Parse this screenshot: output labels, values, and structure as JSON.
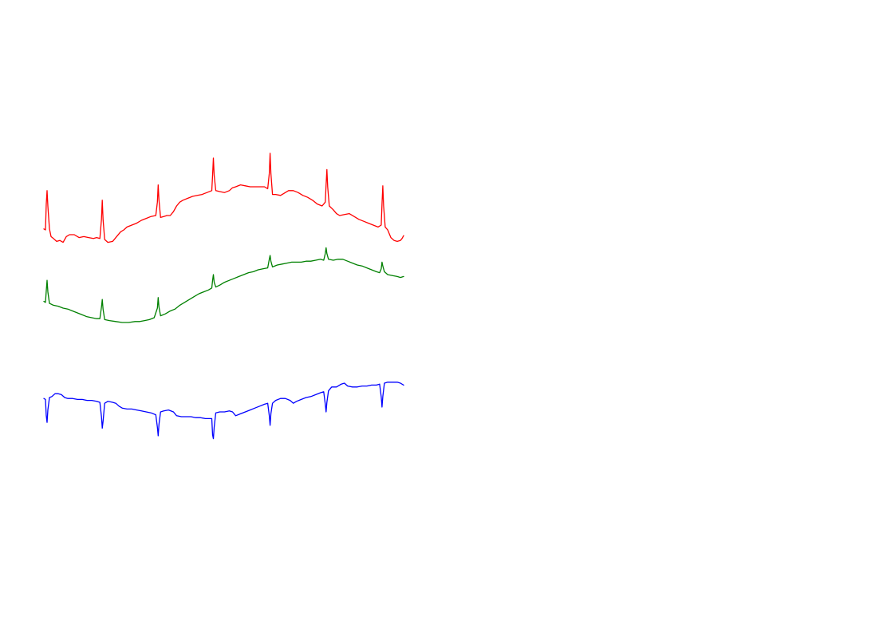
{
  "chart_data": {
    "type": "line",
    "title": "",
    "xlabel": "",
    "ylabel": "",
    "grid": false,
    "legend": "none",
    "x_range": [
      0,
      450
    ],
    "series": [
      {
        "color": "#ff0000",
        "values": [
          [
            0,
            1.6
          ],
          [
            2,
            1.5
          ],
          [
            3,
            4.2
          ],
          [
            4,
            5.6
          ],
          [
            5,
            4.0
          ],
          [
            7,
            1.6
          ],
          [
            9,
            0.8
          ],
          [
            12,
            0.6
          ],
          [
            16,
            0.3
          ],
          [
            20,
            0.4
          ],
          [
            24,
            0.2
          ],
          [
            28,
            0.8
          ],
          [
            32,
            1.0
          ],
          [
            38,
            1.0
          ],
          [
            44,
            0.7
          ],
          [
            50,
            0.8
          ],
          [
            56,
            0.7
          ],
          [
            62,
            0.6
          ],
          [
            66,
            0.7
          ],
          [
            70,
            0.6
          ],
          [
            72,
            2.6
          ],
          [
            73,
            4.6
          ],
          [
            74,
            2.6
          ],
          [
            76,
            0.5
          ],
          [
            80,
            0.2
          ],
          [
            86,
            0.3
          ],
          [
            92,
            0.9
          ],
          [
            96,
            1.3
          ],
          [
            100,
            1.5
          ],
          [
            104,
            1.8
          ],
          [
            110,
            2.0
          ],
          [
            116,
            2.2
          ],
          [
            122,
            2.5
          ],
          [
            128,
            2.7
          ],
          [
            134,
            2.9
          ],
          [
            140,
            3.0
          ],
          [
            142,
            4.4
          ],
          [
            143,
            6.2
          ],
          [
            144,
            4.6
          ],
          [
            146,
            2.8
          ],
          [
            150,
            2.9
          ],
          [
            154,
            3.0
          ],
          [
            158,
            3.0
          ],
          [
            162,
            3.4
          ],
          [
            166,
            4.0
          ],
          [
            170,
            4.4
          ],
          [
            174,
            4.6
          ],
          [
            180,
            4.8
          ],
          [
            186,
            5.0
          ],
          [
            192,
            5.1
          ],
          [
            198,
            5.2
          ],
          [
            204,
            5.4
          ],
          [
            210,
            5.6
          ],
          [
            211,
            7.2
          ],
          [
            212,
            9.0
          ],
          [
            213,
            7.2
          ],
          [
            215,
            5.6
          ],
          [
            220,
            5.5
          ],
          [
            226,
            5.4
          ],
          [
            232,
            5.6
          ],
          [
            236,
            5.9
          ],
          [
            240,
            6.0
          ],
          [
            246,
            6.2
          ],
          [
            252,
            6.1
          ],
          [
            258,
            6.0
          ],
          [
            264,
            6.0
          ],
          [
            270,
            6.0
          ],
          [
            276,
            6.0
          ],
          [
            280,
            5.8
          ],
          [
            282,
            7.4
          ],
          [
            283,
            9.5
          ],
          [
            284,
            7.4
          ],
          [
            286,
            5.2
          ],
          [
            290,
            5.2
          ],
          [
            296,
            5.1
          ],
          [
            300,
            5.3
          ],
          [
            306,
            5.6
          ],
          [
            312,
            5.6
          ],
          [
            318,
            5.4
          ],
          [
            324,
            5.1
          ],
          [
            330,
            4.9
          ],
          [
            336,
            4.6
          ],
          [
            342,
            4.2
          ],
          [
            348,
            4.0
          ],
          [
            352,
            4.4
          ],
          [
            353,
            6.2
          ],
          [
            354,
            7.8
          ],
          [
            355,
            6.0
          ],
          [
            357,
            4.0
          ],
          [
            362,
            3.6
          ],
          [
            366,
            3.2
          ],
          [
            370,
            3.0
          ],
          [
            376,
            3.1
          ],
          [
            382,
            3.2
          ],
          [
            388,
            2.9
          ],
          [
            394,
            2.6
          ],
          [
            400,
            2.4
          ],
          [
            406,
            2.2
          ],
          [
            412,
            2.0
          ],
          [
            418,
            1.8
          ],
          [
            422,
            2.0
          ],
          [
            423,
            4.2
          ],
          [
            424,
            6.1
          ],
          [
            425,
            4.0
          ],
          [
            427,
            1.8
          ],
          [
            430,
            1.5
          ],
          [
            434,
            0.7
          ],
          [
            438,
            0.4
          ],
          [
            442,
            0.3
          ],
          [
            446,
            0.4
          ],
          [
            448,
            0.6
          ],
          [
            450,
            0.9
          ]
        ]
      },
      {
        "color": "#008000",
        "values": [
          [
            0,
            2.2
          ],
          [
            2,
            2.1
          ],
          [
            3,
            3.3
          ],
          [
            4,
            4.4
          ],
          [
            5,
            3.2
          ],
          [
            7,
            2.0
          ],
          [
            12,
            1.8
          ],
          [
            18,
            1.7
          ],
          [
            24,
            1.5
          ],
          [
            30,
            1.4
          ],
          [
            36,
            1.2
          ],
          [
            42,
            1.0
          ],
          [
            48,
            0.8
          ],
          [
            54,
            0.6
          ],
          [
            60,
            0.5
          ],
          [
            66,
            0.4
          ],
          [
            70,
            0.4
          ],
          [
            72,
            1.6
          ],
          [
            73,
            2.4
          ],
          [
            74,
            1.4
          ],
          [
            76,
            0.3
          ],
          [
            82,
            0.2
          ],
          [
            90,
            0.1
          ],
          [
            98,
            0.0
          ],
          [
            106,
            0.0
          ],
          [
            114,
            0.1
          ],
          [
            120,
            0.1
          ],
          [
            126,
            0.2
          ],
          [
            132,
            0.3
          ],
          [
            138,
            0.5
          ],
          [
            142,
            1.5
          ],
          [
            143,
            2.6
          ],
          [
            144,
            1.6
          ],
          [
            146,
            0.7
          ],
          [
            152,
            0.9
          ],
          [
            158,
            1.2
          ],
          [
            164,
            1.4
          ],
          [
            170,
            1.8
          ],
          [
            176,
            2.1
          ],
          [
            182,
            2.4
          ],
          [
            188,
            2.7
          ],
          [
            194,
            3.0
          ],
          [
            200,
            3.2
          ],
          [
            206,
            3.4
          ],
          [
            210,
            3.6
          ],
          [
            211,
            4.4
          ],
          [
            212,
            5.0
          ],
          [
            213,
            4.2
          ],
          [
            215,
            3.7
          ],
          [
            220,
            3.9
          ],
          [
            226,
            4.2
          ],
          [
            232,
            4.4
          ],
          [
            238,
            4.6
          ],
          [
            244,
            4.8
          ],
          [
            250,
            5.0
          ],
          [
            256,
            5.2
          ],
          [
            262,
            5.3
          ],
          [
            268,
            5.5
          ],
          [
            274,
            5.6
          ],
          [
            280,
            5.7
          ],
          [
            282,
            6.6
          ],
          [
            283,
            7.0
          ],
          [
            284,
            6.4
          ],
          [
            286,
            5.8
          ],
          [
            292,
            6.0
          ],
          [
            298,
            6.1
          ],
          [
            304,
            6.2
          ],
          [
            310,
            6.3
          ],
          [
            316,
            6.3
          ],
          [
            322,
            6.3
          ],
          [
            328,
            6.4
          ],
          [
            334,
            6.4
          ],
          [
            340,
            6.5
          ],
          [
            346,
            6.6
          ],
          [
            350,
            6.5
          ],
          [
            352,
            7.2
          ],
          [
            353,
            7.8
          ],
          [
            354,
            7.2
          ],
          [
            356,
            6.6
          ],
          [
            362,
            6.5
          ],
          [
            368,
            6.6
          ],
          [
            374,
            6.6
          ],
          [
            380,
            6.4
          ],
          [
            386,
            6.2
          ],
          [
            392,
            6.0
          ],
          [
            398,
            5.9
          ],
          [
            404,
            5.7
          ],
          [
            410,
            5.5
          ],
          [
            416,
            5.3
          ],
          [
            420,
            5.2
          ],
          [
            422,
            5.6
          ],
          [
            423,
            6.3
          ],
          [
            424,
            5.9
          ],
          [
            426,
            5.3
          ],
          [
            430,
            5.0
          ],
          [
            436,
            4.9
          ],
          [
            442,
            4.8
          ],
          [
            446,
            4.7
          ],
          [
            450,
            4.8
          ]
        ]
      },
      {
        "color": "#0000ff",
        "values": [
          [
            0,
            3.4
          ],
          [
            2,
            3.3
          ],
          [
            3,
            1.6
          ],
          [
            4,
            0.9
          ],
          [
            5,
            2.2
          ],
          [
            7,
            3.5
          ],
          [
            10,
            3.6
          ],
          [
            14,
            3.9
          ],
          [
            18,
            3.9
          ],
          [
            22,
            3.8
          ],
          [
            26,
            3.5
          ],
          [
            30,
            3.4
          ],
          [
            36,
            3.4
          ],
          [
            42,
            3.3
          ],
          [
            48,
            3.3
          ],
          [
            54,
            3.2
          ],
          [
            60,
            3.2
          ],
          [
            66,
            3.1
          ],
          [
            70,
            3.0
          ],
          [
            72,
            1.5
          ],
          [
            73,
            0.3
          ],
          [
            74,
            1.0
          ],
          [
            76,
            2.9
          ],
          [
            80,
            3.1
          ],
          [
            86,
            3.0
          ],
          [
            90,
            2.9
          ],
          [
            94,
            2.6
          ],
          [
            98,
            2.4
          ],
          [
            104,
            2.3
          ],
          [
            110,
            2.3
          ],
          [
            116,
            2.2
          ],
          [
            122,
            2.1
          ],
          [
            128,
            2.0
          ],
          [
            134,
            1.9
          ],
          [
            140,
            1.7
          ],
          [
            142,
            0.4
          ],
          [
            143,
            -0.5
          ],
          [
            144,
            0.7
          ],
          [
            146,
            2.0
          ],
          [
            150,
            2.1
          ],
          [
            156,
            2.2
          ],
          [
            162,
            2.0
          ],
          [
            166,
            1.6
          ],
          [
            172,
            1.5
          ],
          [
            178,
            1.5
          ],
          [
            184,
            1.5
          ],
          [
            190,
            1.4
          ],
          [
            196,
            1.4
          ],
          [
            202,
            1.3
          ],
          [
            208,
            1.3
          ],
          [
            210,
            1.3
          ],
          [
            211,
            -0.4
          ],
          [
            212,
            -0.8
          ],
          [
            213,
            0.4
          ],
          [
            215,
            1.9
          ],
          [
            220,
            2.0
          ],
          [
            226,
            2.0
          ],
          [
            232,
            2.1
          ],
          [
            236,
            2.0
          ],
          [
            240,
            1.6
          ],
          [
            246,
            1.8
          ],
          [
            252,
            2.0
          ],
          [
            258,
            2.2
          ],
          [
            264,
            2.4
          ],
          [
            270,
            2.6
          ],
          [
            276,
            2.8
          ],
          [
            280,
            2.9
          ],
          [
            282,
            1.6
          ],
          [
            283,
            0.6
          ],
          [
            284,
            1.8
          ],
          [
            286,
            2.9
          ],
          [
            290,
            3.2
          ],
          [
            296,
            3.4
          ],
          [
            302,
            3.4
          ],
          [
            308,
            3.2
          ],
          [
            312,
            2.9
          ],
          [
            316,
            3.1
          ],
          [
            322,
            3.3
          ],
          [
            328,
            3.5
          ],
          [
            334,
            3.6
          ],
          [
            340,
            3.8
          ],
          [
            346,
            4.0
          ],
          [
            350,
            4.1
          ],
          [
            352,
            2.8
          ],
          [
            353,
            2.0
          ],
          [
            354,
            3.0
          ],
          [
            356,
            4.2
          ],
          [
            360,
            4.6
          ],
          [
            366,
            4.6
          ],
          [
            372,
            4.9
          ],
          [
            376,
            5.0
          ],
          [
            380,
            4.7
          ],
          [
            386,
            4.6
          ],
          [
            392,
            4.6
          ],
          [
            398,
            4.7
          ],
          [
            404,
            4.7
          ],
          [
            410,
            4.8
          ],
          [
            416,
            4.8
          ],
          [
            420,
            4.9
          ],
          [
            422,
            3.6
          ],
          [
            423,
            2.5
          ],
          [
            424,
            3.6
          ],
          [
            426,
            5.0
          ],
          [
            430,
            5.1
          ],
          [
            436,
            5.1
          ],
          [
            442,
            5.1
          ],
          [
            446,
            5.0
          ],
          [
            450,
            4.8
          ]
        ]
      }
    ]
  }
}
